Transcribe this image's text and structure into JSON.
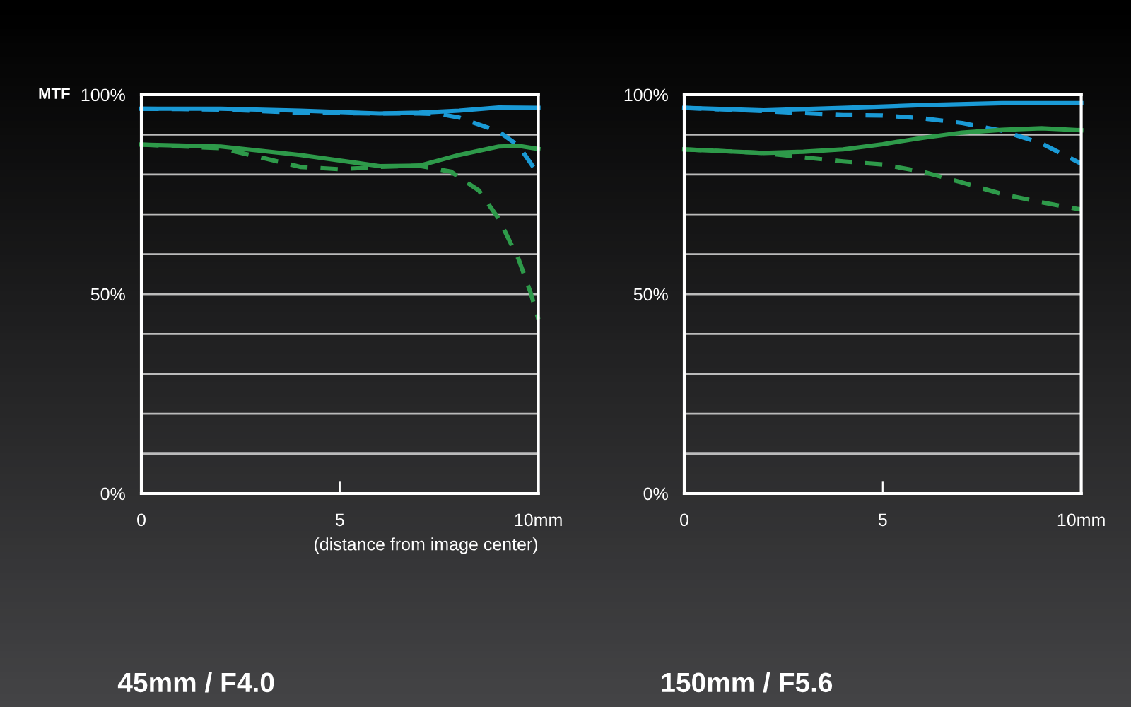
{
  "chart_data": [
    {
      "type": "line",
      "title": "45mm / F4.0",
      "ylabel": "MTF",
      "xlabel": "(distance from image center)",
      "xlim": [
        0,
        10
      ],
      "ylim": [
        0,
        100
      ],
      "xticks": [
        0,
        5,
        {
          "value": 10,
          "label": "10mm"
        }
      ],
      "yticks": [
        {
          "value": 0,
          "label": "0%"
        },
        {
          "value": 10,
          "label": null
        },
        {
          "value": 20,
          "label": null
        },
        {
          "value": 30,
          "label": null
        },
        {
          "value": 40,
          "label": null
        },
        {
          "value": 50,
          "label": "50%"
        },
        {
          "value": 60,
          "label": null
        },
        {
          "value": 70,
          "label": null
        },
        {
          "value": 80,
          "label": null
        },
        {
          "value": 90,
          "label": null
        },
        {
          "value": 100,
          "label": "100%"
        }
      ],
      "grid": "y",
      "legend": false,
      "series": [
        {
          "color": "#1a9ad6",
          "line_style": "solid",
          "x": [
            0,
            2,
            4,
            6,
            7,
            8,
            9,
            10
          ],
          "values": [
            96.5,
            96.5,
            96,
            95.3,
            95.5,
            96,
            96.8,
            96.7
          ]
        },
        {
          "color": "#1a9ad6",
          "line_style": "dashed",
          "x": [
            0,
            2,
            4,
            6,
            7,
            7.5,
            8,
            9,
            9.5,
            9.9
          ],
          "values": [
            96.5,
            96.3,
            95.5,
            95.3,
            95.3,
            95.2,
            94.3,
            90.8,
            87.2,
            81.5
          ]
        },
        {
          "color": "#2e9a4a",
          "line_style": "solid",
          "x": [
            0,
            2,
            4,
            6,
            7,
            8,
            9,
            9.5,
            10
          ],
          "values": [
            87.5,
            87,
            84.9,
            82.1,
            82.2,
            84.9,
            87,
            87.2,
            86.4
          ]
        },
        {
          "color": "#2e9a4a",
          "line_style": "dashed",
          "x": [
            0,
            2,
            3,
            4,
            5,
            6,
            7,
            7.8,
            8.5,
            9,
            9.5,
            9.8,
            10
          ],
          "values": [
            87.5,
            86.6,
            84.3,
            81.9,
            81.3,
            81.9,
            82.2,
            80.7,
            76,
            68.9,
            58.8,
            50.5,
            43.7
          ]
        }
      ]
    },
    {
      "type": "line",
      "title": "150mm / F5.6",
      "xlim": [
        0,
        10
      ],
      "ylim": [
        0,
        100
      ],
      "xticks": [
        0,
        5,
        {
          "value": 10,
          "label": "10mm"
        }
      ],
      "yticks": [
        {
          "value": 0,
          "label": "0%"
        },
        {
          "value": 10,
          "label": null
        },
        {
          "value": 20,
          "label": null
        },
        {
          "value": 30,
          "label": null
        },
        {
          "value": 40,
          "label": null
        },
        {
          "value": 50,
          "label": "50%"
        },
        {
          "value": 60,
          "label": null
        },
        {
          "value": 70,
          "label": null
        },
        {
          "value": 80,
          "label": null
        },
        {
          "value": 90,
          "label": null
        },
        {
          "value": 100,
          "label": "100%"
        }
      ],
      "grid": "y",
      "legend": false,
      "series": [
        {
          "color": "#1a9ad6",
          "line_style": "solid",
          "x": [
            0,
            2,
            4,
            6,
            8,
            10
          ],
          "values": [
            96.7,
            96.1,
            96.7,
            97.4,
            97.9,
            97.9
          ]
        },
        {
          "color": "#1a9ad6",
          "line_style": "dashed",
          "x": [
            0,
            2,
            4,
            5,
            6,
            7,
            8,
            9,
            10
          ],
          "values": [
            96.7,
            95.9,
            94.9,
            94.8,
            94.1,
            92.9,
            91,
            87.8,
            82.7
          ]
        },
        {
          "color": "#2e9a4a",
          "line_style": "solid",
          "x": [
            0,
            2,
            3,
            4,
            5,
            6,
            7,
            8,
            9,
            10
          ],
          "values": [
            86.3,
            85.4,
            85.7,
            86.3,
            87.6,
            89.2,
            90.5,
            91.2,
            91.6,
            91.1
          ]
        },
        {
          "color": "#2e9a4a",
          "line_style": "dashed",
          "x": [
            0,
            2,
            3,
            4,
            5,
            6,
            7,
            8,
            9,
            10
          ],
          "values": [
            86.3,
            85.4,
            84.3,
            83.3,
            82.5,
            80.7,
            78,
            75.1,
            73,
            71.2
          ]
        }
      ]
    }
  ]
}
